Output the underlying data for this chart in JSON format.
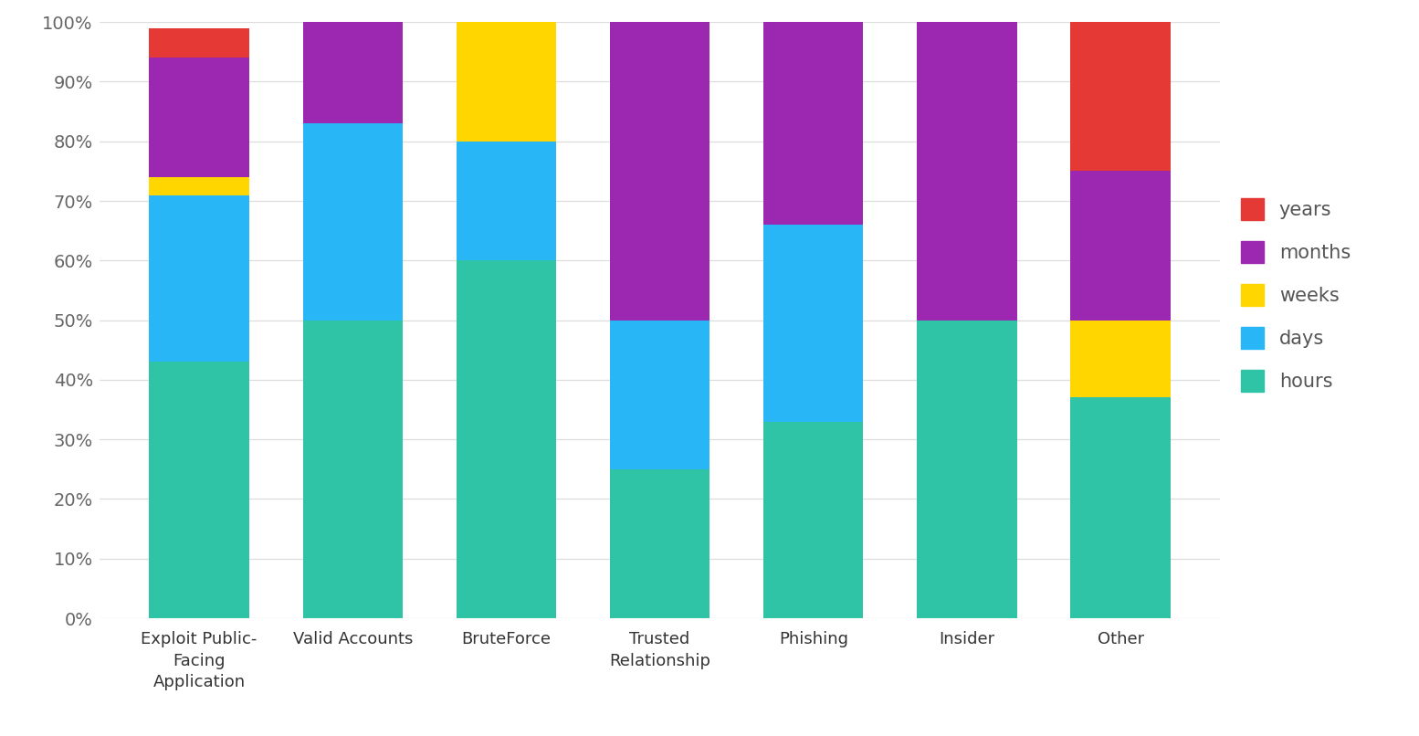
{
  "categories": [
    "Exploit Public-\nFacing\nApplication",
    "Valid Accounts",
    "BruteForce",
    "Trusted\nRelationship",
    "Phishing",
    "Insider",
    "Other"
  ],
  "series": {
    "hours": [
      43,
      50,
      60,
      25,
      33,
      50,
      37
    ],
    "days": [
      28,
      33,
      20,
      25,
      33,
      0,
      0
    ],
    "weeks": [
      3,
      0,
      20,
      0,
      0,
      0,
      13
    ],
    "months": [
      20,
      17,
      0,
      50,
      34,
      50,
      25
    ],
    "years": [
      5,
      0,
      0,
      0,
      0,
      0,
      25
    ]
  },
  "colors": {
    "hours": "#2EC4A5",
    "days": "#29B6F6",
    "weeks": "#FFD600",
    "months": "#9C27B0",
    "years": "#E53935"
  },
  "legend_order": [
    "years",
    "months",
    "weeks",
    "days",
    "hours"
  ],
  "ylim": [
    0,
    100
  ],
  "yticks": [
    0,
    10,
    20,
    30,
    40,
    50,
    60,
    70,
    80,
    90,
    100
  ],
  "yticklabels": [
    "0%",
    "10%",
    "20%",
    "30%",
    "40%",
    "50%",
    "60%",
    "70%",
    "80%",
    "90%",
    "100%"
  ],
  "background_color": "#FFFFFF",
  "grid_color": "#DDDDDD",
  "bar_width": 0.65
}
